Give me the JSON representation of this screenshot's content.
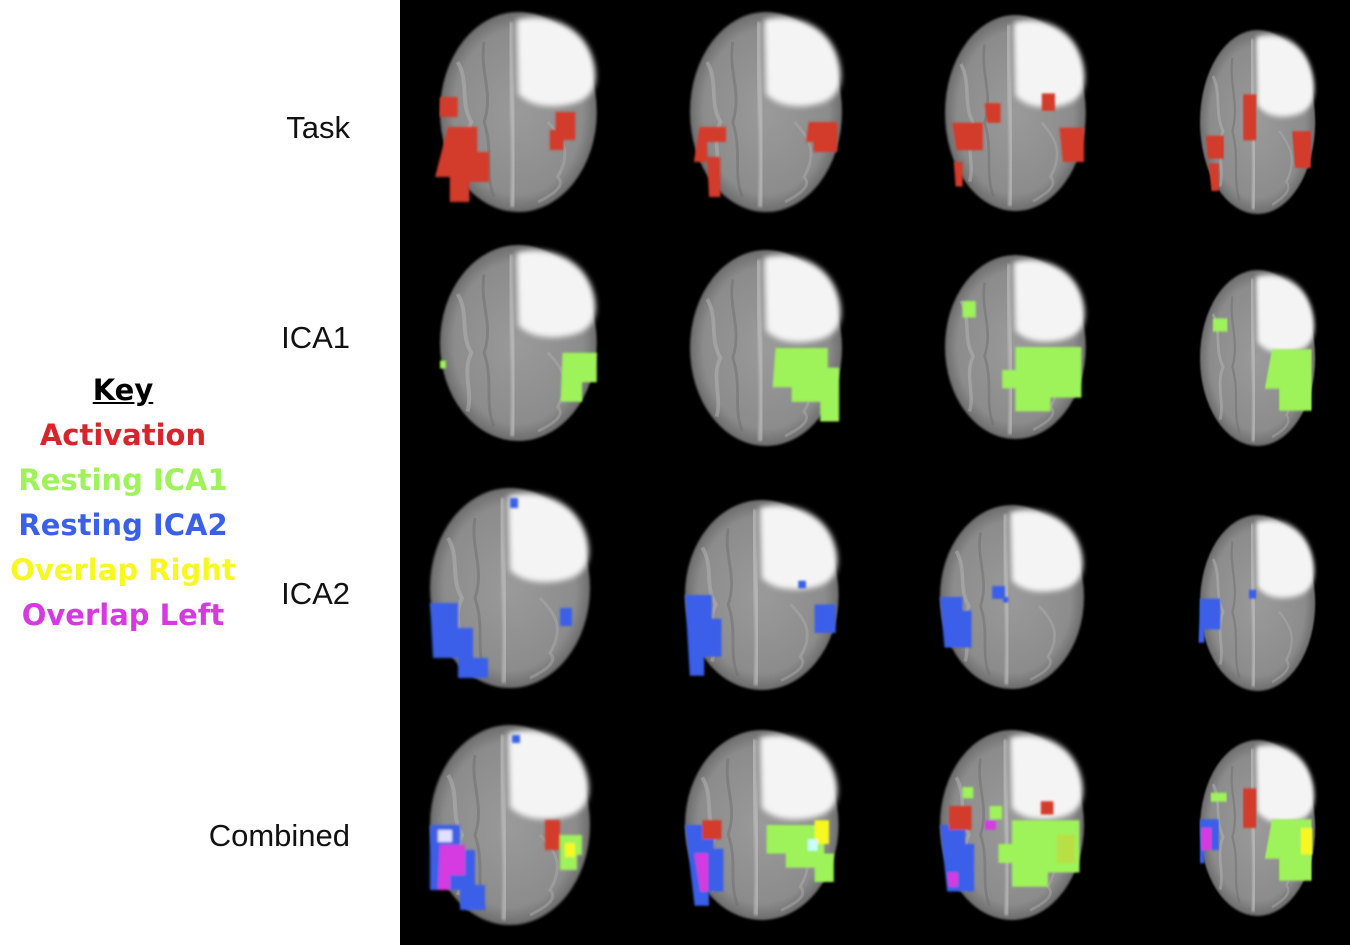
{
  "key": {
    "title": "Key",
    "items": [
      {
        "label": "Activation",
        "color": "#d9242b"
      },
      {
        "label": "Resting ICA1",
        "color": "#9ef25a"
      },
      {
        "label": "Resting ICA2",
        "color": "#3a5fe8"
      },
      {
        "label": "Overlap Right",
        "color": "#f7f722"
      },
      {
        "label": "Overlap Left",
        "color": "#d53ae0"
      }
    ]
  },
  "rows": [
    {
      "label": "Task"
    },
    {
      "label": "ICA1"
    },
    {
      "label": "ICA2"
    },
    {
      "label": "Combined"
    }
  ],
  "colors": {
    "background": "#000000",
    "brain_tissue": "#8a8a8a",
    "lesion": "#ffffff"
  }
}
